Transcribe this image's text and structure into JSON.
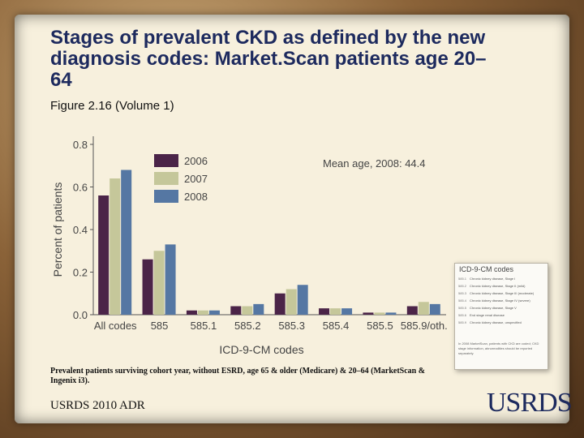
{
  "slide": {
    "title": "Stages of prevalent CKD as defined by the new diagnosis codes: Market.Scan patients age 20–64",
    "subtitle": "Figure 2.16 (Volume 1)",
    "note": "Prevalent patients surviving cohort year, without ESRD, age 65 & older (Medicare) & 20–64 (MarketScan & Ingenix i3).",
    "footer": "USRDS 2010 ADR",
    "logo": "USRDS"
  },
  "inset": {
    "title": "ICD-9-CM codes",
    "rows": [
      {
        "code": "585.1",
        "text": "Chronic kidney disease, Stage I"
      },
      {
        "code": "585.2",
        "text": "Chronic kidney disease, Stage II (mild)"
      },
      {
        "code": "585.3",
        "text": "Chronic kidney disease, Stage III (moderate)"
      },
      {
        "code": "585.4",
        "text": "Chronic kidney disease, Stage IV (severe)"
      },
      {
        "code": "585.5",
        "text": "Chronic kidney disease, Stage V"
      },
      {
        "code": "585.6",
        "text": "End stage renal disease"
      },
      {
        "code": "585.9",
        "text": "Chronic kidney disease, unspecified"
      }
    ],
    "footnote": "In 2008 MarketScan, patients with CKD are coded; CKD stage information, abnormalities should be reported separately."
  },
  "chart_data": {
    "type": "bar",
    "title": "",
    "annotation": "Mean age, 2008: 44.4",
    "xlabel": "ICD-9-CM codes",
    "ylabel": "Percent of patients",
    "ylim": [
      0,
      0.8
    ],
    "yticks": [
      "0.0",
      "0.2",
      "0.4",
      "0.6",
      "0.8"
    ],
    "grid": false,
    "legend_position": "top-right",
    "categories": [
      "All codes",
      "585",
      "585.1",
      "585.2",
      "585.3",
      "585.4",
      "585.5",
      "585.9/oth."
    ],
    "series": [
      {
        "name": "2006",
        "color": "#4b2448",
        "values": [
          0.56,
          0.26,
          0.02,
          0.04,
          0.1,
          0.03,
          0.01,
          0.04
        ]
      },
      {
        "name": "2007",
        "color": "#c5c79a",
        "values": [
          0.64,
          0.3,
          0.02,
          0.04,
          0.12,
          0.03,
          0.01,
          0.06
        ]
      },
      {
        "name": "2008",
        "color": "#5577a3",
        "values": [
          0.68,
          0.33,
          0.02,
          0.05,
          0.14,
          0.03,
          0.01,
          0.05
        ]
      }
    ]
  }
}
